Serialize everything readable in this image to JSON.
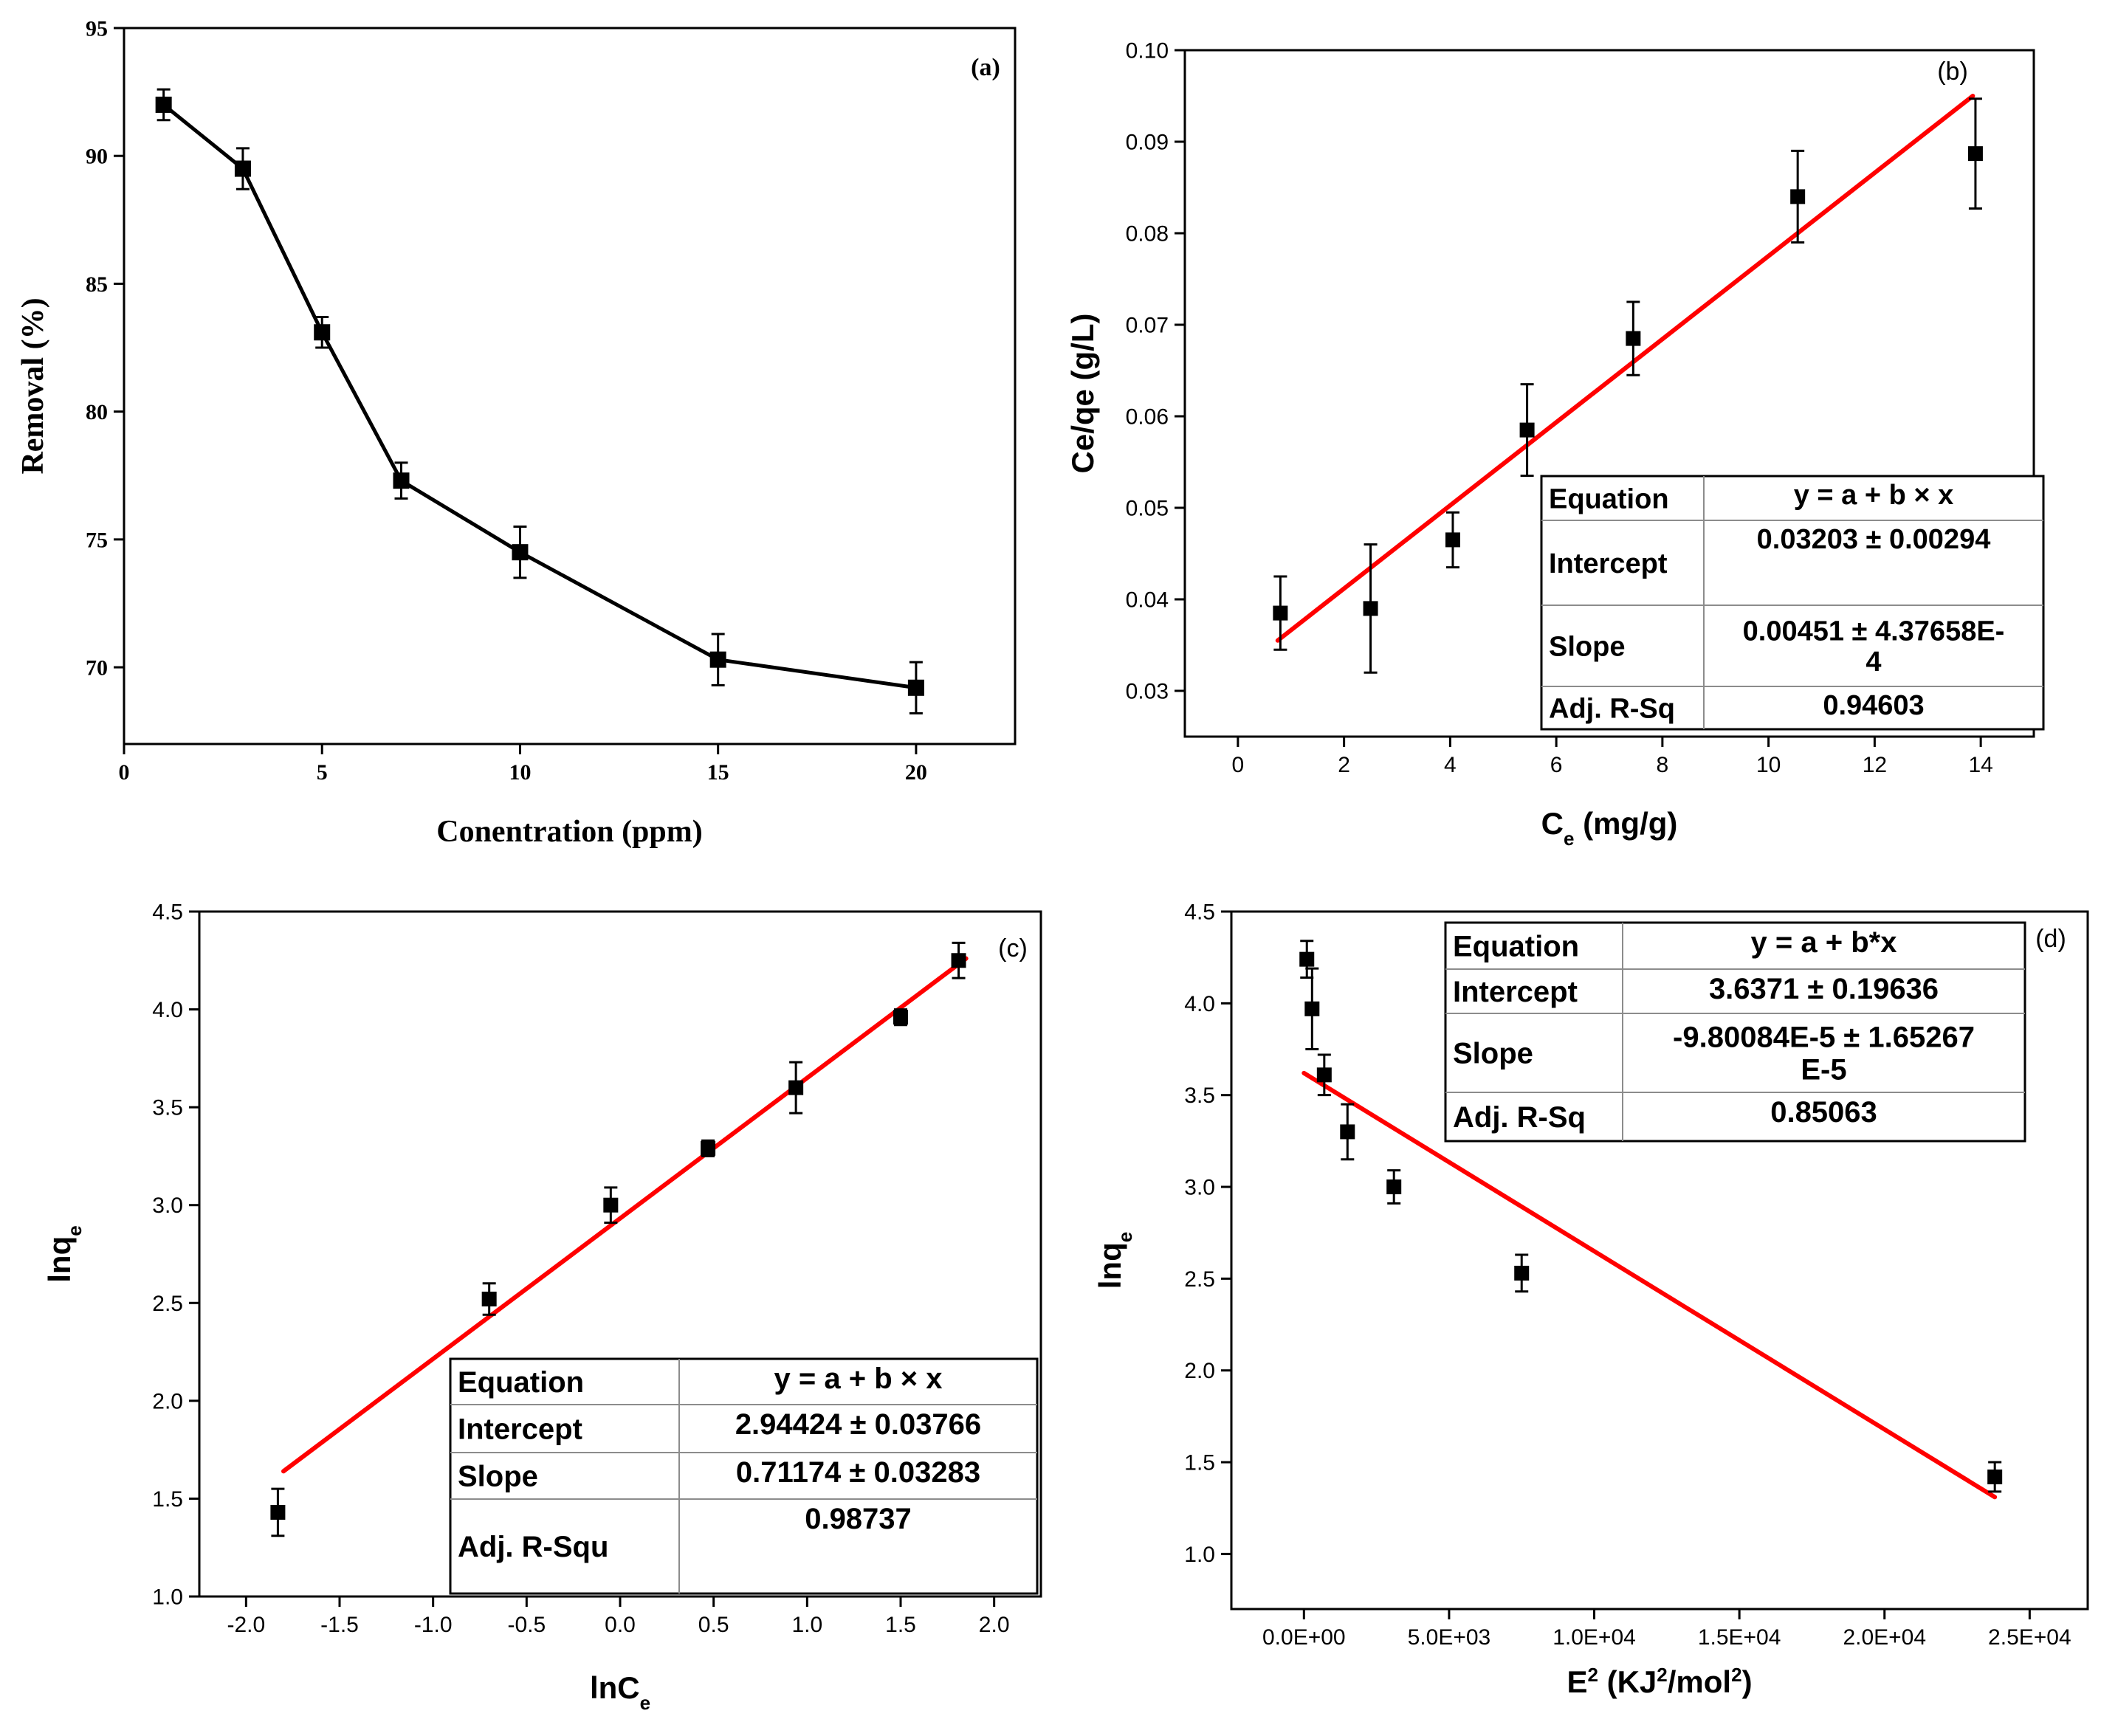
{
  "colors": {
    "axis": "#000000",
    "series": "#000000",
    "fit": "#ff0000",
    "box_border": "#000000",
    "background": "#ffffff"
  },
  "chart_data": [
    {
      "id": "a",
      "type": "line",
      "panel_label": "(a)",
      "font": "serif",
      "xlabel": "Conentration (ppm)",
      "ylabel": "Removal (%)",
      "xlim": [
        0,
        22.5
      ],
      "ylim": [
        67,
        95
      ],
      "xticks": [
        0,
        5,
        10,
        15,
        20
      ],
      "xtick_labels": [
        "0",
        "5",
        "10",
        "15",
        "20"
      ],
      "yticks": [
        70,
        75,
        80,
        85,
        90,
        95
      ],
      "ytick_labels": [
        "70",
        "75",
        "80",
        "85",
        "90",
        "95"
      ],
      "series": [
        {
          "name": "Removal",
          "x": [
            1,
            3,
            5,
            7,
            10,
            15,
            20
          ],
          "y": [
            92.0,
            89.5,
            83.1,
            77.3,
            74.5,
            70.3,
            69.2
          ],
          "yerr": [
            0.6,
            0.8,
            0.6,
            0.7,
            1.0,
            1.0,
            1.0
          ],
          "connect": true
        }
      ]
    },
    {
      "id": "b",
      "type": "scatter",
      "panel_label": "(b)",
      "font": "sans",
      "xlabel": "Ce (mg/g)",
      "xlabel_main": "C",
      "xlabel_sub": "e",
      "xlabel_rest": " (mg/g)",
      "ylabel": "Ce/qe (g/L)",
      "xlim": [
        -1,
        15
      ],
      "ylim": [
        0.025,
        0.1
      ],
      "xticks": [
        0,
        2,
        4,
        6,
        8,
        10,
        12,
        14
      ],
      "xtick_labels": [
        "0",
        "2",
        "4",
        "6",
        "8",
        "10",
        "12",
        "14"
      ],
      "yticks": [
        0.03,
        0.04,
        0.05,
        0.06,
        0.07,
        0.08,
        0.09,
        0.1
      ],
      "ytick_labels": [
        "0.03",
        "0.04",
        "0.05",
        "0.06",
        "0.07",
        "0.08",
        "0.09",
        "0.10"
      ],
      "series": [
        {
          "name": "data",
          "x": [
            0.8,
            2.5,
            4.05,
            5.45,
            7.45,
            10.55,
            13.9
          ],
          "y": [
            0.0385,
            0.039,
            0.0465,
            0.0585,
            0.0685,
            0.084,
            0.0887
          ],
          "yerr": [
            0.004,
            0.007,
            0.003,
            0.005,
            0.004,
            0.005,
            0.006
          ]
        }
      ],
      "fit": {
        "x": [
          0.75,
          13.85
        ],
        "y": [
          0.0355,
          0.095
        ]
      },
      "fit_table": [
        [
          "Equation",
          "y = a + b × x"
        ],
        [
          "Intercept",
          "0.03203 ± 0.00294"
        ],
        [
          "Slope",
          "0.00451 ± 4.37658E-\n4"
        ],
        [
          "Adj. R-Sq",
          "0.94603"
        ]
      ]
    },
    {
      "id": "c",
      "type": "scatter",
      "panel_label": "(c)",
      "font": "sans",
      "xlabel": "lnCe",
      "xlabel_main": "lnC",
      "xlabel_sub": "e",
      "xlabel_rest": "",
      "ylabel": "lnqe",
      "ylabel_main": "lnq",
      "ylabel_sub": "e",
      "xlim": [
        -2.25,
        2.25
      ],
      "ylim": [
        1.0,
        4.5
      ],
      "xticks": [
        -2,
        -1.5,
        -1,
        -0.5,
        0,
        0.5,
        1,
        1.5,
        2
      ],
      "xtick_labels": [
        "-2.0",
        "-1.5",
        "-1.0",
        "-0.5",
        "0.0",
        "0.5",
        "1.0",
        "1.5",
        "2.0"
      ],
      "yticks": [
        1.0,
        1.5,
        2.0,
        2.5,
        3.0,
        3.5,
        4.0,
        4.5
      ],
      "ytick_labels": [
        "1.0",
        "1.5",
        "2.0",
        "2.5",
        "3.0",
        "3.5",
        "4.0",
        "4.5"
      ],
      "series": [
        {
          "name": "data",
          "x": [
            -1.83,
            -0.7,
            -0.05,
            0.47,
            0.94,
            1.5,
            1.81
          ],
          "y": [
            1.43,
            2.52,
            3.0,
            3.29,
            3.6,
            3.96,
            4.25
          ],
          "yerr": [
            0.12,
            0.08,
            0.09,
            0.04,
            0.13,
            0.04,
            0.09
          ]
        }
      ],
      "fit": {
        "x": [
          -1.8,
          1.85
        ],
        "y": [
          1.64,
          4.26
        ]
      },
      "fit_table": [
        [
          "Equation",
          "y = a + b × x"
        ],
        [
          "Intercept",
          "2.94424 ± 0.03766"
        ],
        [
          "Slope",
          "0.71174 ± 0.03283"
        ],
        [
          "Adj. R-Squ",
          "0.98737"
        ]
      ]
    },
    {
      "id": "d",
      "type": "scatter",
      "panel_label": "(d)",
      "font": "sans",
      "xlabel": "E2 (KJ2/mol2)",
      "ylabel": "lnqe",
      "ylabel_main": "lnq",
      "ylabel_sub": "e",
      "xlim": [
        -2500,
        27000
      ],
      "ylim": [
        0.7,
        4.5
      ],
      "xticks": [
        0,
        5000,
        10000,
        15000,
        20000,
        25000
      ],
      "xtick_labels": [
        "0.0E+00",
        "5.0E+03",
        "1.0E+04",
        "1.5E+04",
        "2.0E+04",
        "2.5E+04"
      ],
      "yticks": [
        1.0,
        1.5,
        2.0,
        2.5,
        3.0,
        3.5,
        4.0,
        4.5
      ],
      "ytick_labels": [
        "1.0",
        "1.5",
        "2.0",
        "2.5",
        "3.0",
        "3.5",
        "4.0",
        "4.5"
      ],
      "series": [
        {
          "name": "data",
          "x": [
            100,
            280,
            700,
            1500,
            3100,
            7500,
            23800
          ],
          "y": [
            4.24,
            3.97,
            3.61,
            3.3,
            3.0,
            2.53,
            1.42
          ],
          "yerr": [
            0.1,
            0.22,
            0.11,
            0.15,
            0.09,
            0.1,
            0.08
          ]
        }
      ],
      "fit": {
        "x": [
          0,
          23800
        ],
        "y": [
          3.62,
          1.31
        ]
      },
      "fit_table": [
        [
          "Equation",
          "y = a + b*x"
        ],
        [
          "Intercept",
          "3.6371 ± 0.19636"
        ],
        [
          "Slope",
          "-9.80084E-5 ± 1.65267\nE-5"
        ],
        [
          "Adj. R-Sq",
          "0.85063"
        ]
      ]
    }
  ]
}
